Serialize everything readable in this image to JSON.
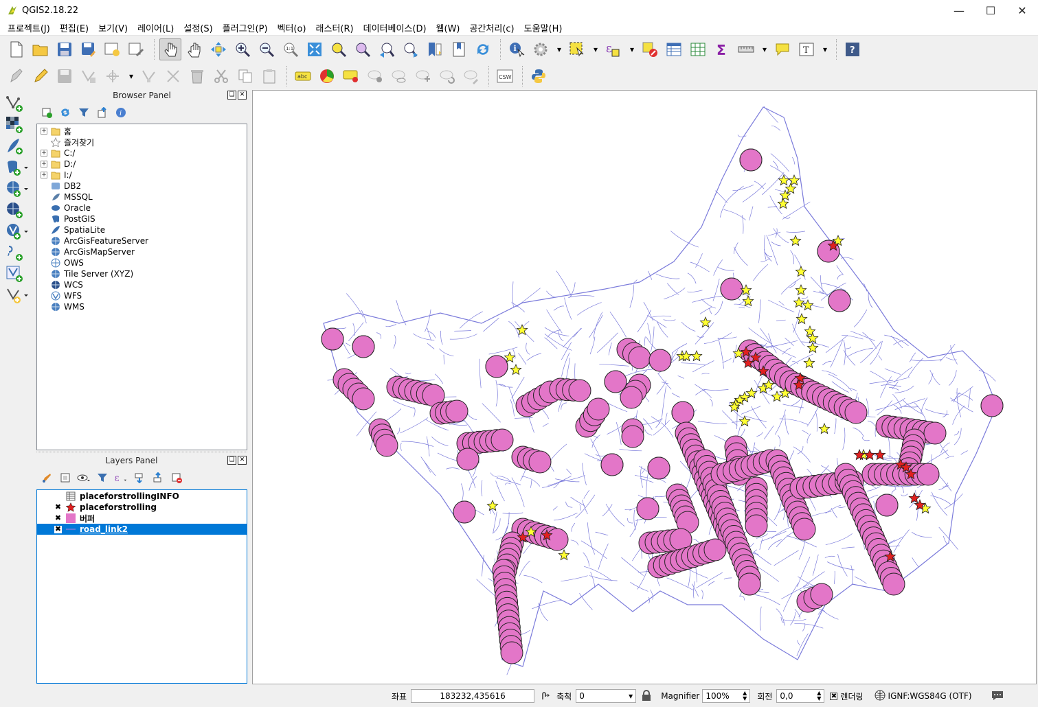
{
  "window": {
    "title": "QGIS2.18.22"
  },
  "menu": [
    "프로젝트(J)",
    "편집(E)",
    "보기(V)",
    "레이어(L)",
    "설정(S)",
    "플러그인(P)",
    "벡터(o)",
    "래스터(R)",
    "데이터베이스(D)",
    "웹(W)",
    "공간처리(c)",
    "도움말(H)"
  ],
  "toolbar2": {
    "csw_label": "CSW",
    "label_icon_text": "abc"
  },
  "browser": {
    "title": "Browser Panel",
    "items": [
      {
        "label": "홈",
        "icon": "folder-icon",
        "expandable": true
      },
      {
        "label": "즐겨찾기",
        "icon": "star-icon",
        "expandable": false
      },
      {
        "label": "C:/",
        "icon": "folder-icon",
        "expandable": true
      },
      {
        "label": "D:/",
        "icon": "folder-icon",
        "expandable": true
      },
      {
        "label": "I:/",
        "icon": "folder-icon",
        "expandable": true
      },
      {
        "label": "DB2",
        "icon": "db2-icon",
        "expandable": false
      },
      {
        "label": "MSSQL",
        "icon": "mssql-icon",
        "expandable": false
      },
      {
        "label": "Oracle",
        "icon": "oracle-icon",
        "expandable": false
      },
      {
        "label": "PostGIS",
        "icon": "postgis-icon",
        "expandable": false
      },
      {
        "label": "SpatiaLite",
        "icon": "spatialite-icon",
        "expandable": false
      },
      {
        "label": "ArcGisFeatureServer",
        "icon": "globe-icon",
        "expandable": false
      },
      {
        "label": "ArcGisMapServer",
        "icon": "globe-icon",
        "expandable": false
      },
      {
        "label": "OWS",
        "icon": "ows-icon",
        "expandable": false
      },
      {
        "label": "Tile Server (XYZ)",
        "icon": "globe-icon",
        "expandable": false
      },
      {
        "label": "WCS",
        "icon": "globe-icon",
        "expandable": false
      },
      {
        "label": "WFS",
        "icon": "wfs-icon",
        "expandable": false
      },
      {
        "label": "WMS",
        "icon": "globe-icon",
        "expandable": false
      }
    ]
  },
  "layers": {
    "title": "Layers Panel",
    "items": [
      {
        "name": "placeforstrollingINFO",
        "checked": false,
        "symbol": "table-icon",
        "selected": false
      },
      {
        "name": "placeforstrolling",
        "checked": true,
        "symbol": "red-star-icon",
        "selected": false
      },
      {
        "name": "버퍼",
        "checked": true,
        "symbol": "pink-fill-icon",
        "selected": false
      },
      {
        "name": "road_link2",
        "checked": true,
        "symbol": "line-icon",
        "selected": true
      }
    ]
  },
  "map": {
    "road_color": "#7b7bdb",
    "buffer_color": "#e376c8",
    "star_yellow": "#ffff33",
    "star_red": "#e02020"
  },
  "status": {
    "coord_label": "좌표",
    "coord_value": "183232,435616",
    "scale_label": "축척",
    "scale_value": "0",
    "magnifier_label": "Magnifier",
    "magnifier_value": "100%",
    "rotation_label": "회전",
    "rotation_value": "0,0",
    "render_label": "렌더링",
    "crs": "IGNF:WGS84G (OTF)"
  }
}
